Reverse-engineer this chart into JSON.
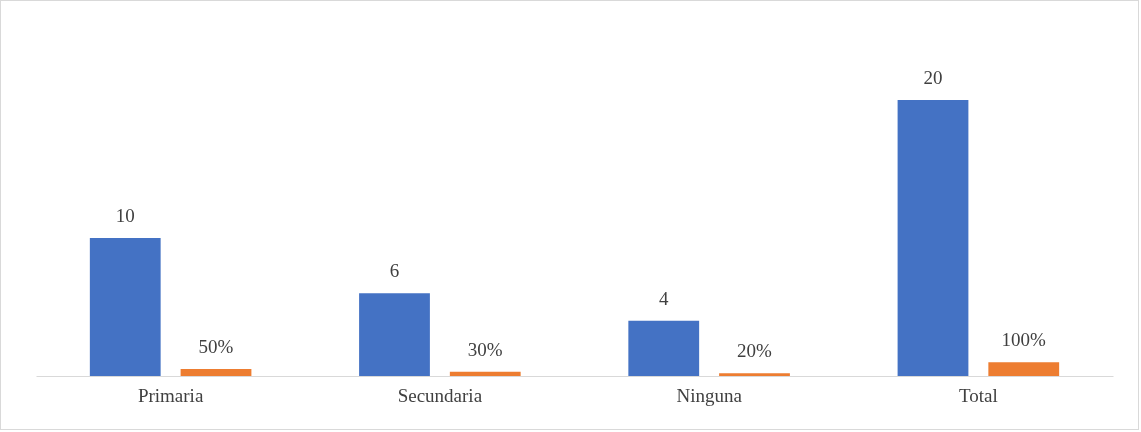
{
  "chart_data": {
    "type": "bar",
    "categories": [
      "Primaria",
      "Secundaria",
      "Ninguna",
      "Total"
    ],
    "series": [
      {
        "color": "#4472c4",
        "values": [
          10,
          6,
          4,
          20
        ],
        "value_labels": [
          "10",
          "6",
          "4",
          "20"
        ]
      },
      {
        "color": "#ed7d31",
        "values": [
          0.5,
          0.3,
          0.2,
          1
        ],
        "value_labels": [
          "50%",
          "30%",
          "20%",
          "100%"
        ]
      }
    ],
    "legend": false,
    "grid": false
  }
}
